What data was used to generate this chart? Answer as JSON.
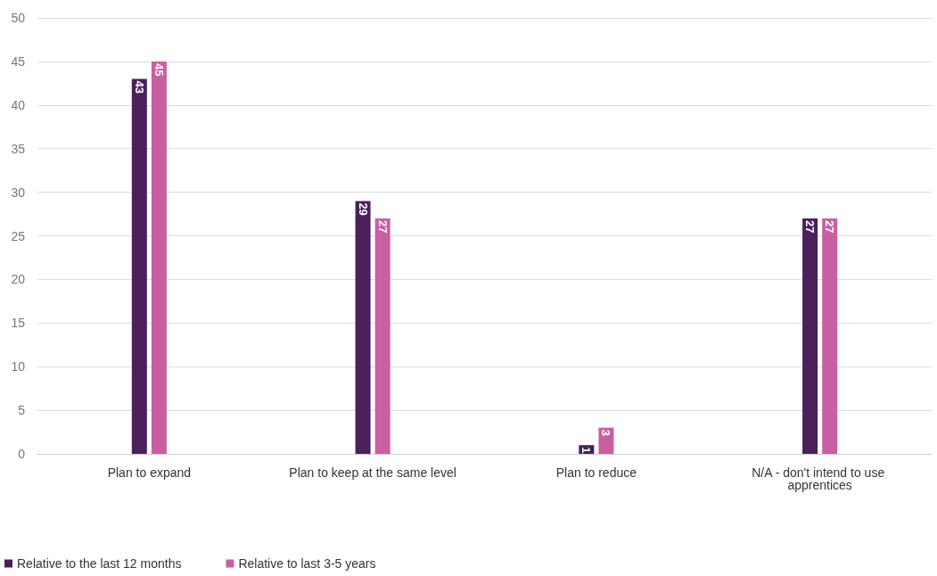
{
  "chart_data": {
    "type": "bar",
    "categories": [
      "Plan to expand",
      "Plan to keep at the same level",
      "Plan to reduce",
      "N/A - don't intend to use apprentices"
    ],
    "series": [
      {
        "name": "Relative to the last 12 months",
        "color": "#4a1f5a",
        "values": [
          43,
          29,
          1,
          27
        ]
      },
      {
        "name": "Relative to last 3-5 years",
        "color": "#c95fa3",
        "values": [
          45,
          27,
          3,
          27
        ]
      }
    ],
    "ylim": [
      0,
      50
    ],
    "yticks": [
      0,
      5,
      10,
      15,
      20,
      25,
      30,
      35,
      40,
      45,
      50
    ],
    "grid": "y",
    "legend": "bottom left",
    "data_labels": true
  }
}
